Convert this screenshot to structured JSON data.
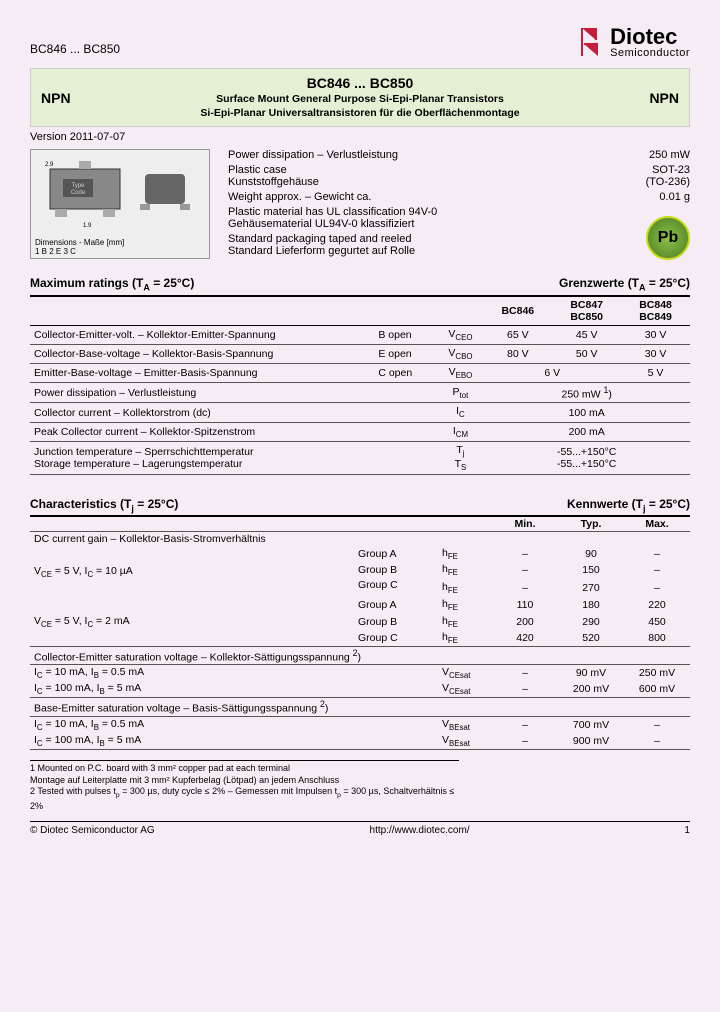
{
  "meta": {
    "part_range_top": "BC846 ... BC850",
    "logo_main": "Diotec",
    "logo_sub": "Semiconductor",
    "logo_color": "#c41e3a"
  },
  "header": {
    "title": "BC846 ... BC850",
    "npn": "NPN",
    "sub_en": "Surface Mount General Purpose Si-Epi-Planar Transistors",
    "sub_de": "Si-Epi-Planar Universaltransistoren für die Oberflächenmontage"
  },
  "version": "Version 2011-07-07",
  "package": {
    "dims_caption": "Dimensions - Maße [mm]",
    "pins": "1   B      2   E      3   C",
    "type_code": "Type\nCode"
  },
  "info_specs": [
    {
      "l": "Power dissipation – Verlustleistung",
      "v": "250 mW"
    },
    {
      "l": "Plastic case\nKunststoffgehäuse",
      "v": "SOT-23\n(TO-236)"
    },
    {
      "l": "Weight approx. – Gewicht ca.",
      "v": "0.01 g"
    },
    {
      "l": "Plastic material has UL classification 94V-0\nGehäusematerial UL94V-0 klassifiziert",
      "v": ""
    },
    {
      "l": "Standard packaging taped and reeled\nStandard Lieferform gegurtet auf Rolle",
      "v": ""
    }
  ],
  "pb": "Pb",
  "maxratings": {
    "title_l": "Maximum ratings (T<sub>A</sub> = 25°C)",
    "title_r": "Grenzwerte (T<sub>A</sub> = 25°C)",
    "cols": [
      "BC846",
      "BC847\nBC850",
      "BC848\nBC849"
    ],
    "rows": [
      {
        "p": "Collector-Emitter-volt. – Kollektor-Emitter-Spannung",
        "cond": "B open",
        "sym": "V<sub>CEO</sub>",
        "v": [
          "65 V",
          "45 V",
          "30 V"
        ]
      },
      {
        "p": "Collector-Base-voltage – Kollektor-Basis-Spannung",
        "cond": "E open",
        "sym": "V<sub>CBO</sub>",
        "v": [
          "80 V",
          "50 V",
          "30 V"
        ]
      },
      {
        "p": "Emitter-Base-voltage – Emitter-Basis-Spannung",
        "cond": "C open",
        "sym": "V<sub>EBO</sub>",
        "v": [
          "",
          "6 V",
          "5 V"
        ],
        "span2": true
      },
      {
        "p": "Power dissipation – Verlustleistung",
        "cond": "",
        "sym": "P<sub>tot</sub>",
        "v": [
          "250 mW <sup>1</sup>)"
        ],
        "span3": true
      },
      {
        "p": "Collector current – Kollektorstrom (dc)",
        "cond": "",
        "sym": "I<sub>C</sub>",
        "v": [
          "100 mA"
        ],
        "span3": true
      },
      {
        "p": "Peak Collector current – Kollektor-Spitzenstrom",
        "cond": "",
        "sym": "I<sub>CM</sub>",
        "v": [
          "200 mA"
        ],
        "span3": true
      },
      {
        "p": "Junction temperature – Sperrschichttemperatur\nStorage temperature – Lagerungstemperatur",
        "cond": "",
        "sym": "T<sub>j</sub>\nT<sub>S</sub>",
        "v": [
          "-55...+150°C\n-55...+150°C"
        ],
        "span3": true
      }
    ]
  },
  "char": {
    "title_l": "Characteristics (T<sub>j</sub> = 25°C)",
    "title_r": "Kennwerte (T<sub>j</sub> = 25°C)",
    "cols": [
      "Min.",
      "Typ.",
      "Max."
    ],
    "dc_gain": "DC current gain – Kollektor-Basis-Stromverhältnis",
    "cond1": "V<sub>CE</sub> = 5 V, I<sub>C</sub> = 10 µA",
    "cond2": "V<sub>CE</sub> = 5 V, I<sub>C</sub> = 2 mA",
    "groups1": [
      {
        "g": "Group A",
        "s": "h<sub>FE</sub>",
        "v": [
          "–",
          "90",
          "–"
        ]
      },
      {
        "g": "Group B",
        "s": "h<sub>FE</sub>",
        "v": [
          "–",
          "150",
          "–"
        ]
      },
      {
        "g": "Group C",
        "s": "h<sub>FE</sub>",
        "v": [
          "–",
          "270",
          "–"
        ]
      }
    ],
    "groups2": [
      {
        "g": "Group A",
        "s": "h<sub>FE</sub>",
        "v": [
          "110",
          "180",
          "220"
        ]
      },
      {
        "g": "Group B",
        "s": "h<sub>FE</sub>",
        "v": [
          "200",
          "290",
          "450"
        ]
      },
      {
        "g": "Group C",
        "s": "h<sub>FE</sub>",
        "v": [
          "420",
          "520",
          "800"
        ]
      }
    ],
    "ce_sat": "Collector-Emitter saturation voltage – Kollektor-Sättigungsspannung <sup>2</sup>)",
    "ce_rows": [
      {
        "c": "I<sub>C</sub> = 10 mA, I<sub>B</sub> = 0.5 mA",
        "s": "V<sub>CEsat</sub>",
        "v": [
          "–",
          "90 mV",
          "250 mV"
        ]
      },
      {
        "c": "I<sub>C</sub> = 100 mA, I<sub>B</sub> = 5 mA",
        "s": "V<sub>CEsat</sub>",
        "v": [
          "–",
          "200 mV",
          "600 mV"
        ]
      }
    ],
    "be_sat": "Base-Emitter saturation voltage – Basis-Sättigungsspannung <sup>2</sup>)",
    "be_rows": [
      {
        "c": "I<sub>C</sub> = 10 mA, I<sub>B</sub> = 0.5 mA",
        "s": "V<sub>BEsat</sub>",
        "v": [
          "–",
          "700 mV",
          "–"
        ]
      },
      {
        "c": "I<sub>C</sub> = 100 mA, I<sub>B</sub> = 5 mA",
        "s": "V<sub>BEsat</sub>",
        "v": [
          "–",
          "900 mV",
          "–"
        ]
      }
    ]
  },
  "footnotes": [
    "1    Mounted on P.C. board with 3 mm² copper pad at each terminal\n      Montage auf Leiterplatte mit 3 mm² Kupferbelag (Lötpad) an jedem Anschluss",
    "2    Tested with pulses t<sub>p</sub> = 300 µs, duty cycle ≤ 2%  –  Gemessen mit Impulsen t<sub>p</sub> = 300 µs, Schaltverhältnis ≤ 2%"
  ],
  "footer": {
    "l": "© Diotec Semiconductor AG",
    "c": "http://www.diotec.com/",
    "r": "1"
  }
}
